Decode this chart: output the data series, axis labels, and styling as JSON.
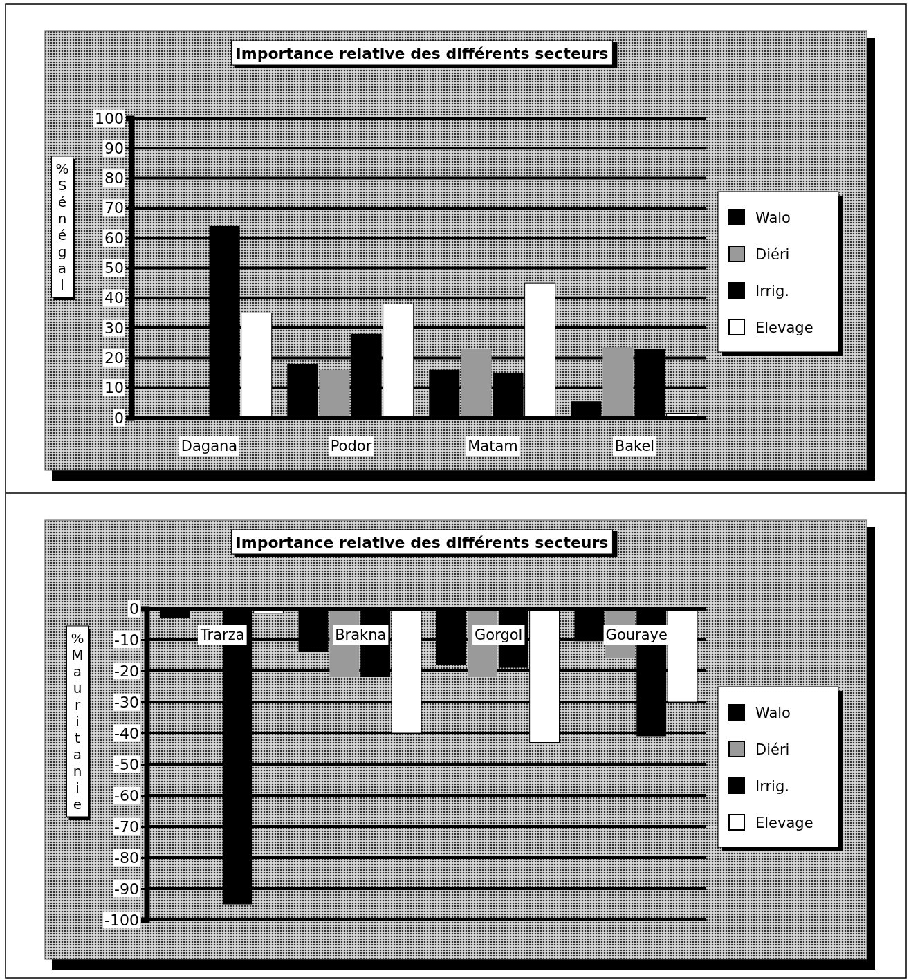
{
  "chart_data": [
    {
      "type": "bar",
      "title": "Importance relative des différents secteurs",
      "ylabel": "% Sénégal",
      "categories": [
        "Dagana",
        "Podor",
        "Matam",
        "Bakel"
      ],
      "series": [
        {
          "name": "Walo",
          "color": "#000000",
          "values": [
            0,
            18,
            16,
            5.5
          ]
        },
        {
          "name": "Diéri",
          "color": "#9a9a9a",
          "values": [
            0,
            16,
            23,
            23.5
          ]
        },
        {
          "name": "Irrig.",
          "color": "#000000",
          "values": [
            64,
            28,
            15,
            23
          ]
        },
        {
          "name": "Elevage",
          "color": "#ffffff",
          "values": [
            35,
            38,
            45,
            1.5
          ]
        }
      ],
      "ylim": [
        0,
        100
      ],
      "yticks": [
        0,
        10,
        20,
        30,
        40,
        50,
        60,
        70,
        80,
        90,
        100
      ],
      "grid": "y",
      "legend": "right"
    },
    {
      "type": "bar",
      "title": "Importance relative des différents secteurs",
      "ylabel": "% Mauritanie",
      "categories": [
        "Trarza",
        "Brakna",
        "Gorgol",
        "Gouraye"
      ],
      "series": [
        {
          "name": "Walo",
          "color": "#000000",
          "values": [
            -3,
            -14,
            -18,
            -10.5
          ]
        },
        {
          "name": "Diéri",
          "color": "#9a9a9a",
          "values": [
            0,
            -22,
            -22,
            -16
          ]
        },
        {
          "name": "Irrig.",
          "color": "#000000",
          "values": [
            -95,
            -22,
            -19,
            -41
          ]
        },
        {
          "name": "Elevage",
          "color": "#ffffff",
          "values": [
            -1.5,
            -40,
            -43,
            -30
          ]
        }
      ],
      "ylim": [
        -100,
        0
      ],
      "yticks": [
        0,
        -10,
        -20,
        -30,
        -40,
        -50,
        -60,
        -70,
        -80,
        -90,
        -100
      ],
      "grid": "y",
      "legend": "right"
    }
  ]
}
